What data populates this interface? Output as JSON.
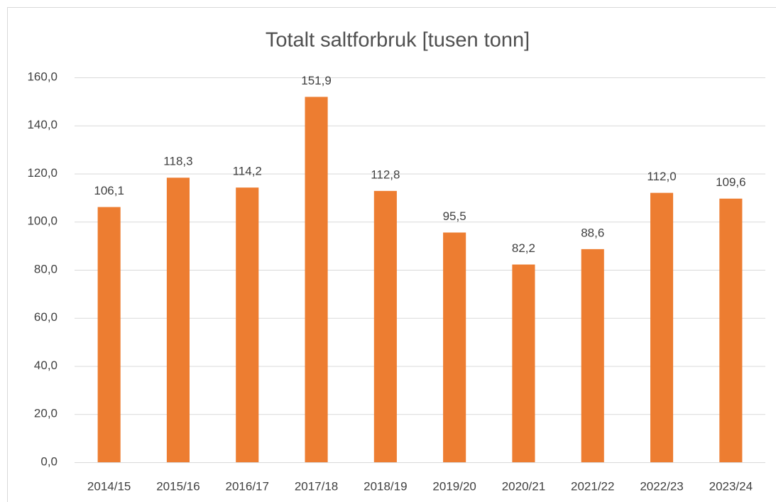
{
  "chart_data": {
    "type": "bar",
    "title": "Totalt saltforbruk [tusen tonn]",
    "categories": [
      "2014/15",
      "2015/16",
      "2016/17",
      "2017/18",
      "2018/19",
      "2019/20",
      "2020/21",
      "2021/22",
      "2022/23",
      "2023/24"
    ],
    "values": [
      106.1,
      118.3,
      114.2,
      151.9,
      112.8,
      95.5,
      82.2,
      88.6,
      112.0,
      109.6
    ],
    "value_labels": [
      "106,1",
      "118,3",
      "114,2",
      "151,9",
      "112,8",
      "95,5",
      "82,2",
      "88,6",
      "112,0",
      "109,6"
    ],
    "color": "#ed7d31",
    "ylim": [
      0,
      160
    ],
    "yticks": [
      {
        "value": 0,
        "label": "0,0"
      },
      {
        "value": 20,
        "label": "20,0"
      },
      {
        "value": 40,
        "label": "40,0"
      },
      {
        "value": 60,
        "label": "60,0"
      },
      {
        "value": 80,
        "label": "80,0"
      },
      {
        "value": 100,
        "label": "100,0"
      },
      {
        "value": 120,
        "label": "120,0"
      },
      {
        "value": 140,
        "label": "140,0"
      },
      {
        "value": 160,
        "label": "160,0"
      }
    ],
    "grid": true
  }
}
